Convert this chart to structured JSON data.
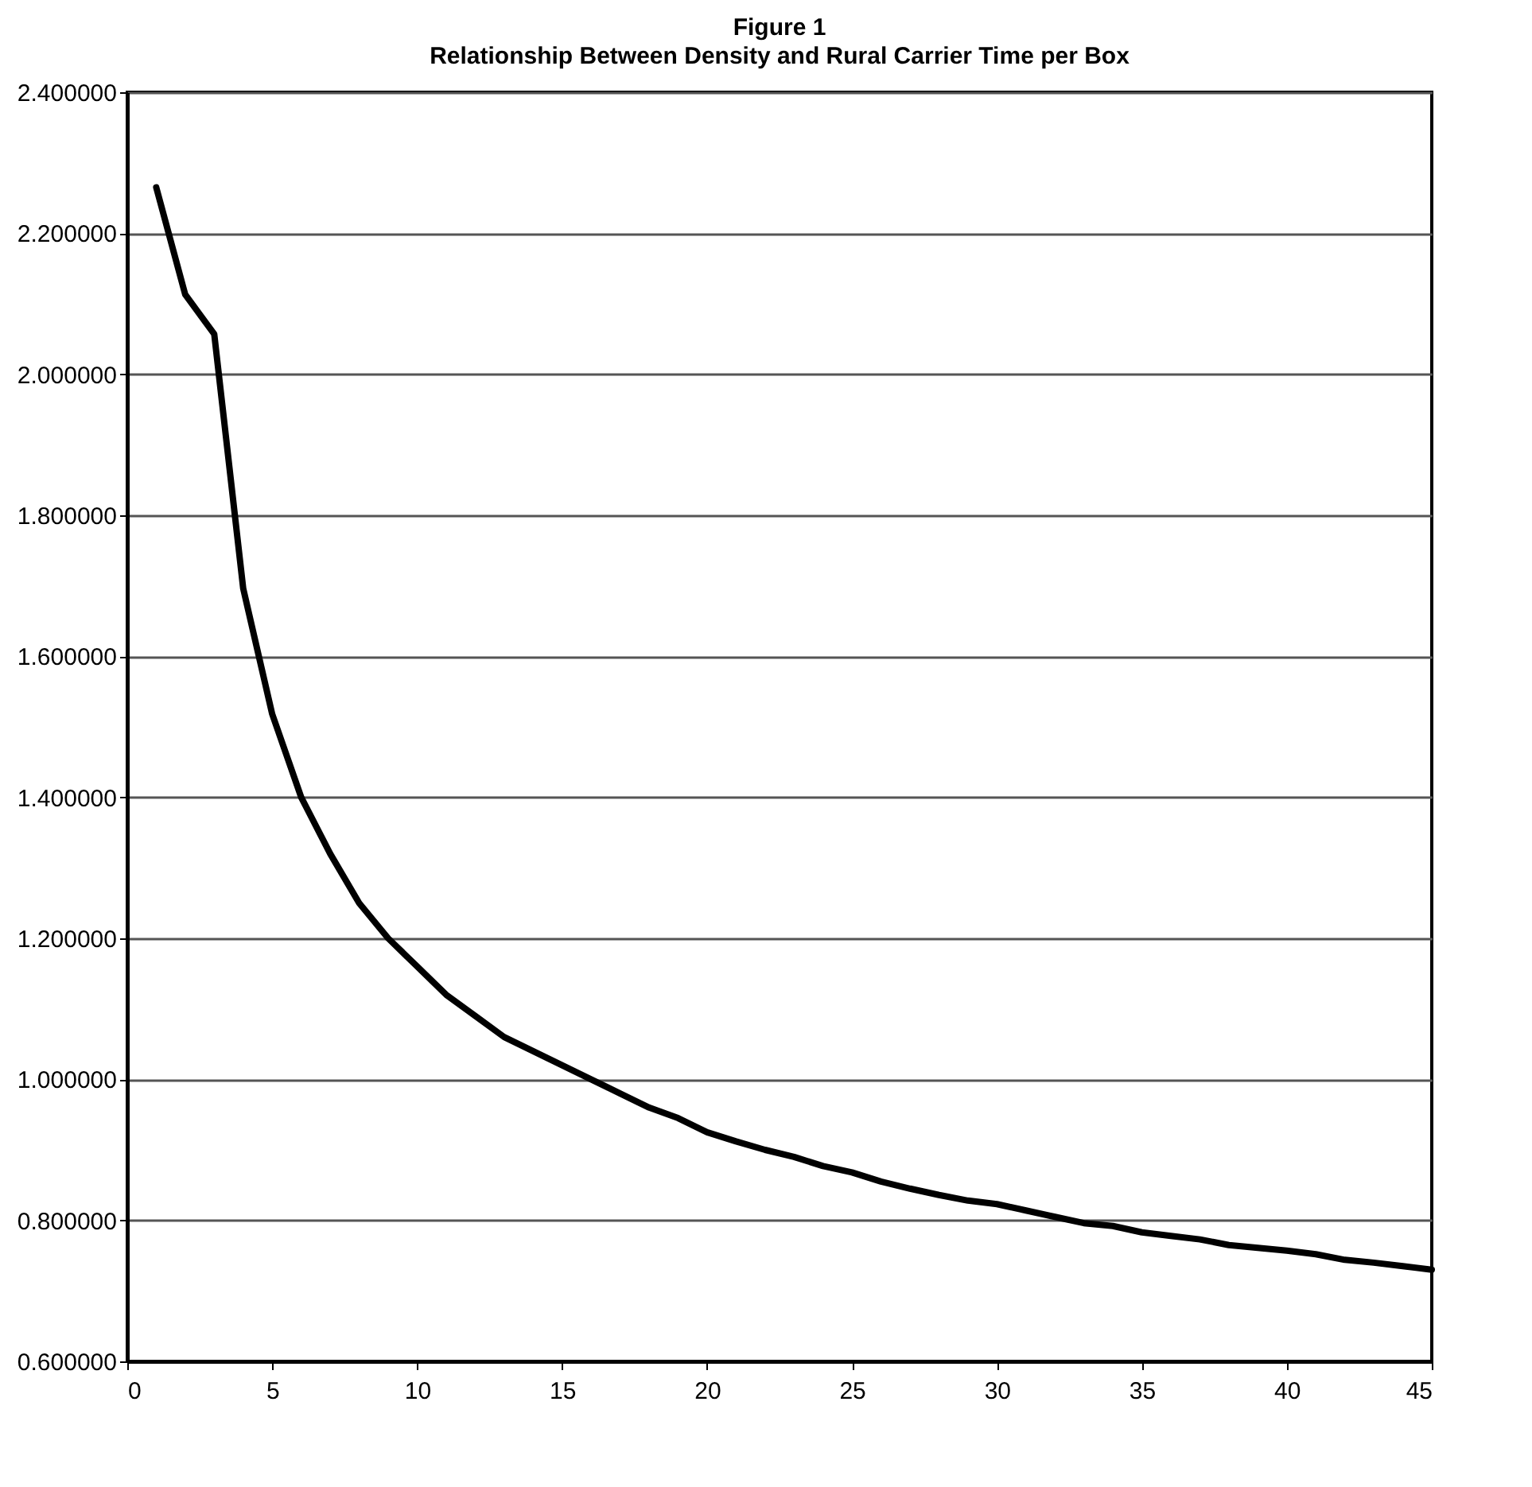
{
  "chart_data": {
    "type": "line",
    "title": "Figure 1",
    "subtitle": "Relationship Between Density and Rural Carrier Time per Box",
    "x": [
      1,
      2,
      3,
      4,
      5,
      6,
      7,
      8,
      9,
      10,
      11,
      12,
      13,
      14,
      15,
      16,
      17,
      18,
      19,
      20,
      21,
      22,
      23,
      24,
      25,
      26,
      27,
      28,
      29,
      30,
      31,
      32,
      33,
      34,
      35,
      36,
      37,
      38,
      39,
      40,
      41,
      42,
      43,
      44,
      45
    ],
    "series": [
      {
        "color": "#000000",
        "values": [
          2.265,
          2.113,
          2.057,
          1.696,
          1.518,
          1.4,
          1.32,
          1.25,
          1.2,
          1.16,
          1.12,
          1.09,
          1.06,
          1.04,
          1.02,
          1.0,
          0.98,
          0.96,
          0.945,
          0.925,
          0.912,
          0.9,
          0.89,
          0.877,
          0.868,
          0.855,
          0.845,
          0.836,
          0.828,
          0.823,
          0.814,
          0.805,
          0.796,
          0.792,
          0.783,
          0.778,
          0.773,
          0.765,
          0.761,
          0.757,
          0.752,
          0.744,
          0.74,
          0.735,
          0.73
        ]
      }
    ],
    "xlim": [
      0,
      45
    ],
    "xticks": [
      0,
      5,
      10,
      15,
      20,
      25,
      30,
      35,
      40,
      45
    ],
    "ylim": [
      0.6,
      2.4
    ],
    "yticks": [
      {
        "value": 0.6,
        "label": "0.600000"
      },
      {
        "value": 0.8,
        "label": "0.800000"
      },
      {
        "value": 1.0,
        "label": "1.000000"
      },
      {
        "value": 1.2,
        "label": "1.200000"
      },
      {
        "value": 1.4,
        "label": "1.400000"
      },
      {
        "value": 1.6,
        "label": "1.600000"
      },
      {
        "value": 1.8,
        "label": "1.800000"
      },
      {
        "value": 2.0,
        "label": "2.000000"
      },
      {
        "value": 2.2,
        "label": "2.200000"
      },
      {
        "value": 2.4,
        "label": "2.400000"
      }
    ],
    "grid": "y",
    "marker": "none",
    "line_style": "solid"
  }
}
